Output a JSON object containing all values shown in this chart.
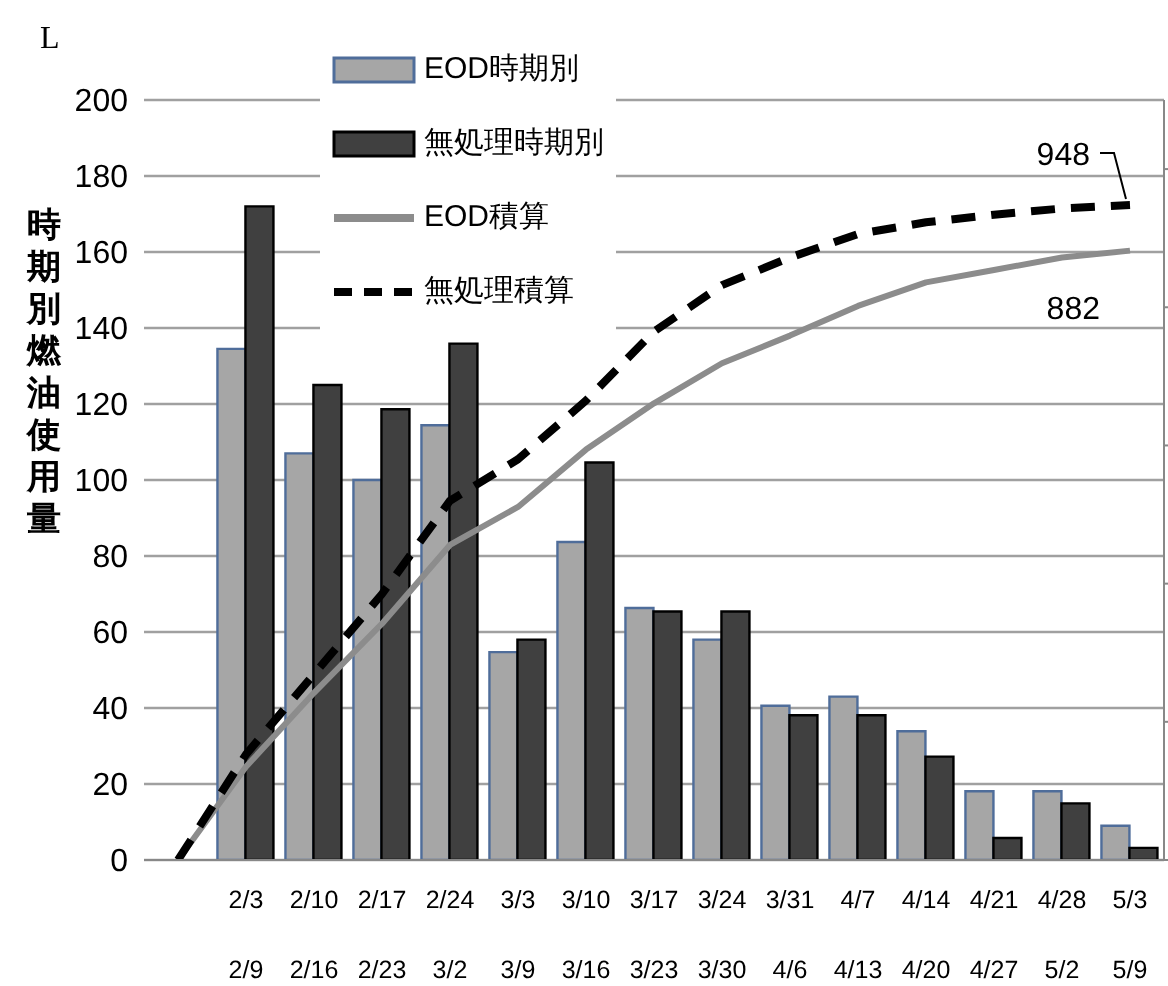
{
  "chart_data": {
    "type": "bar",
    "ylabel": "時期別燃油使用量",
    "categories": [
      null,
      "2/3\n2/9",
      "2/10\n2/16",
      "2/17\n2/23",
      "2/24\n3/2",
      "3/3\n3/9",
      "3/10\n3/16",
      "3/17\n3/23",
      "3/24\n3/30",
      "3/31\n4/6",
      "4/7\n4/13",
      "4/14\n4/20",
      "4/21\n4/27",
      "4/28\n5/2",
      "5/3\n5/9"
    ],
    "series": [
      {
        "name": "EOD時期別",
        "color": "#a6a6a6",
        "values": [
          null,
          134.5,
          107,
          100,
          114.4,
          54.7,
          83.7,
          66.3,
          58,
          40.6,
          43,
          33.9,
          18.1,
          18.1,
          9
        ]
      },
      {
        "name": "無処理時期別",
        "color": "#404040",
        "values": [
          null,
          172,
          125,
          118.6,
          135.9,
          58,
          104.6,
          65.4,
          65.4,
          38.1,
          38.1,
          27.2,
          5.8,
          14.9,
          3.2
        ]
      },
      {
        "name": "EOD積算",
        "type": "line",
        "axis": "y2",
        "color": "#8c8c8c",
        "line_style": "solid",
        "values": [
          0,
          135,
          242,
          342,
          456,
          511,
          594,
          661,
          719,
          759,
          802,
          836,
          854,
          872,
          882
        ],
        "value_labels": [
          null,
          null,
          null,
          null,
          null,
          null,
          null,
          null,
          null,
          null,
          null,
          null,
          null,
          null,
          "882"
        ]
      },
      {
        "name": "無処理積算",
        "type": "line",
        "axis": "y2",
        "color": "#000000",
        "line_style": "dashed",
        "values": [
          0,
          153,
          269,
          385,
          520,
          580,
          665,
          765,
          832,
          872,
          906,
          923,
          934,
          943,
          948
        ],
        "value_labels": [
          null,
          null,
          null,
          null,
          null,
          null,
          null,
          null,
          null,
          null,
          null,
          null,
          null,
          null,
          "948"
        ]
      }
    ],
    "ylim": [
      0,
      200
    ],
    "yticks": [
      0,
      20,
      40,
      60,
      80,
      100,
      120,
      140,
      160,
      180,
      200
    ],
    "y2lim": [
      0,
      1100
    ],
    "y2ticks": [
      {
        "value": 0,
        "label": null
      },
      {
        "value": 200,
        "label": null
      },
      {
        "value": 400,
        "label": null
      },
      {
        "value": 600,
        "label": null
      },
      {
        "value": 800,
        "label": null
      },
      {
        "value": 1000,
        "label": null
      }
    ],
    "tick_labels": "xy_only",
    "grid": "y",
    "legend": "top left",
    "marker": "none",
    "annotations": [
      "L"
    ]
  }
}
